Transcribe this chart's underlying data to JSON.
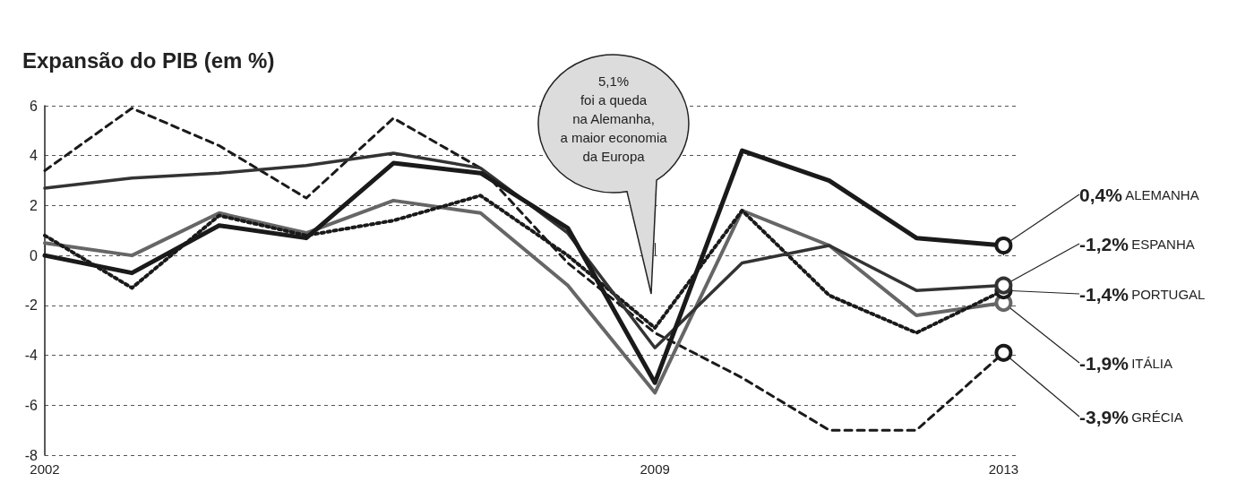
{
  "chart_data": {
    "type": "line",
    "title": "Expansão do PIB (em %)",
    "x": [
      2002,
      2003,
      2004,
      2005,
      2006,
      2007,
      2008,
      2009,
      2010,
      2011,
      2012,
      2013
    ],
    "xlim": [
      2002,
      2013.15
    ],
    "xticks": [
      2002,
      2009,
      2013
    ],
    "ylim": [
      -8,
      6
    ],
    "yticks": [
      -8,
      -6,
      -4,
      -2,
      0,
      2,
      4,
      6
    ],
    "grid": "y",
    "legend": false,
    "annotations": [
      "5,1%\nfoi a queda\nna Alemanha,\na maior economia\nda Europa"
    ],
    "series": [
      {
        "name": "ALEMANHA",
        "color": "#1a1a1a",
        "line_style": "solid",
        "values": [
          0.0,
          -0.7,
          1.2,
          0.7,
          3.7,
          3.3,
          1.1,
          -5.1,
          4.2,
          3.0,
          0.7,
          0.4
        ],
        "value_labels": [
          null,
          null,
          null,
          null,
          null,
          null,
          null,
          null,
          null,
          null,
          null,
          "0,4%"
        ]
      },
      {
        "name": "ESPANHA",
        "color": "#333333",
        "line_style": "solid",
        "values": [
          2.7,
          3.1,
          3.3,
          3.6,
          4.1,
          3.5,
          0.9,
          -3.7,
          -0.3,
          0.4,
          -1.4,
          -1.2
        ],
        "value_labels": [
          null,
          null,
          null,
          null,
          null,
          null,
          null,
          null,
          null,
          null,
          null,
          "-1,2%"
        ]
      },
      {
        "name": "PORTUGAL",
        "color": "#1a1a1a",
        "line_style": "dotted",
        "values": [
          0.8,
          -1.3,
          1.6,
          0.8,
          1.4,
          2.4,
          0.0,
          -2.9,
          1.8,
          -1.6,
          -3.1,
          -1.4
        ],
        "value_labels": [
          null,
          null,
          null,
          null,
          null,
          null,
          null,
          null,
          null,
          null,
          null,
          "-1,4%"
        ]
      },
      {
        "name": "ITÁLIA",
        "color": "#666666",
        "line_style": "solid",
        "values": [
          0.5,
          0.0,
          1.7,
          0.9,
          2.2,
          1.7,
          -1.2,
          -5.5,
          1.8,
          0.4,
          -2.4,
          -1.9
        ],
        "value_labels": [
          null,
          null,
          null,
          null,
          null,
          null,
          null,
          null,
          null,
          null,
          null,
          "-1,9%"
        ]
      },
      {
        "name": "GRÉCIA",
        "color": "#1a1a1a",
        "line_style": "dashed",
        "values": [
          3.4,
          5.9,
          4.4,
          2.3,
          5.5,
          3.5,
          -0.3,
          -3.1,
          -4.9,
          -7.0,
          -7.0,
          -3.9
        ],
        "value_labels": [
          null,
          null,
          null,
          null,
          null,
          null,
          null,
          null,
          null,
          null,
          null,
          "-3,9%"
        ]
      }
    ]
  }
}
